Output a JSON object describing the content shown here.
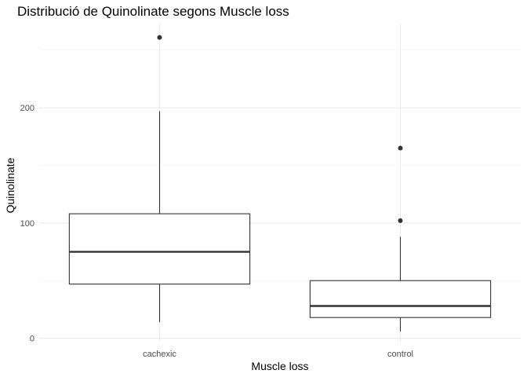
{
  "chart_data": {
    "type": "boxplot",
    "title": "Distribució de Quinolinate segons Muscle loss",
    "xlabel": "Muscle loss",
    "ylabel": "Quinolinate",
    "categories": [
      "cachexic",
      "control"
    ],
    "boxes": [
      {
        "category": "cachexic",
        "min": 14,
        "q1": 47,
        "median": 75,
        "q3": 108,
        "max": 197,
        "outliers": [
          261
        ]
      },
      {
        "category": "control",
        "min": 6,
        "q1": 18,
        "median": 28,
        "q3": 50,
        "max": 88,
        "outliers": [
          102,
          165
        ]
      }
    ],
    "ylim": [
      -3,
      273
    ],
    "yticks": [
      0,
      100,
      200
    ],
    "yticks_labels": [
      "0",
      "100",
      "200"
    ],
    "y_minor_ticks": [
      50,
      150,
      250
    ],
    "grid": true,
    "legend": "none"
  }
}
